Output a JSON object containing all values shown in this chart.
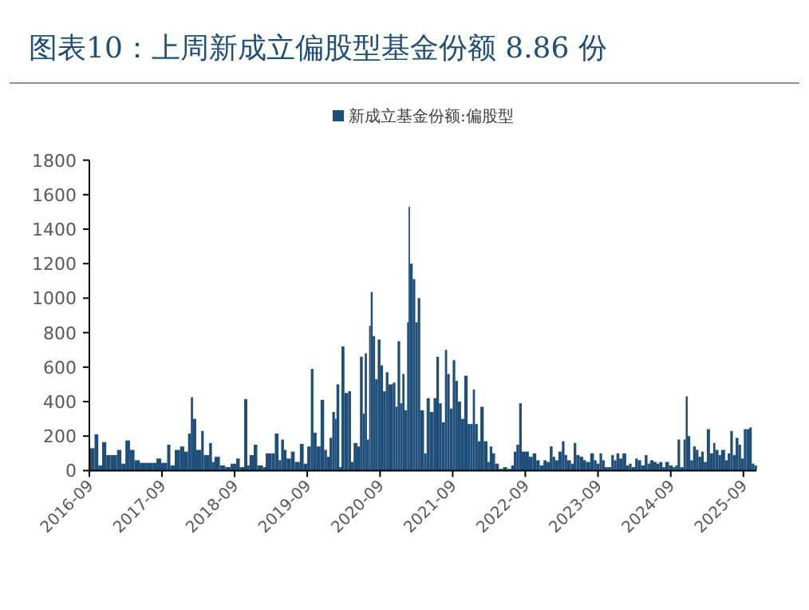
{
  "chart_data": {
    "type": "bar",
    "title": "图表10：上周新成立偏股型基金份额 8.86 份",
    "legend": "top",
    "x": [
      "2016-09-01",
      "2016-09-27",
      "2016-10-16",
      "2016-11-04",
      "2016-11-25",
      "2016-12-16",
      "2017-01-18",
      "2017-02-09",
      "2017-03-01",
      "2017-03-24",
      "2017-04-16",
      "2017-05-12",
      "2017-06-16",
      "2017-07-18",
      "2017-08-04",
      "2017-08-28",
      "2017-09-27",
      "2017-10-13",
      "2017-11-04",
      "2017-12-01",
      "2017-12-22",
      "2018-01-10",
      "2018-01-24",
      "2018-02-04",
      "2018-02-20",
      "2018-03-17",
      "2018-03-30",
      "2018-04-26",
      "2018-05-10",
      "2018-05-23",
      "2018-06-19",
      "2018-07-16",
      "2018-08-12",
      "2018-09-09",
      "2018-09-27",
      "2018-10-19",
      "2018-11-04",
      "2018-11-15",
      "2018-12-06",
      "2018-12-24",
      "2019-01-21",
      "2019-02-04",
      "2019-03-06",
      "2019-03-22",
      "2019-04-10",
      "2019-04-23",
      "2019-05-07",
      "2019-05-20",
      "2019-06-11",
      "2019-06-30",
      "2019-07-26",
      "2019-08-14",
      "2019-09-01",
      "2019-09-19",
      "2019-10-02",
      "2019-10-18",
      "2019-11-07",
      "2019-11-25",
      "2019-12-09",
      "2019-12-22",
      "2020-01-05",
      "2020-01-18",
      "2020-01-26",
      "2020-02-09",
      "2020-02-20",
      "2020-03-06",
      "2020-03-25",
      "2020-04-08",
      "2020-04-21",
      "2020-05-10",
      "2020-05-23",
      "2020-06-06",
      "2020-06-16",
      "2020-06-27",
      "2020-07-08",
      "2020-07-16",
      "2020-07-26",
      "2020-08-07",
      "2020-08-20",
      "2020-09-03",
      "2020-09-16",
      "2020-09-30",
      "2020-10-13",
      "2020-11-04",
      "2020-11-17",
      "2020-11-28",
      "2020-12-11",
      "2020-12-22",
      "2021-01-02",
      "2021-01-15",
      "2021-01-22",
      "2021-01-29",
      "2021-02-12",
      "2021-02-25",
      "2021-03-09",
      "2021-03-22",
      "2021-04-10",
      "2021-04-23",
      "2021-05-09",
      "2021-05-28",
      "2021-06-11",
      "2021-06-24",
      "2021-07-08",
      "2021-07-24",
      "2021-08-04",
      "2021-08-17",
      "2021-09-01",
      "2021-09-14",
      "2021-09-27",
      "2021-10-13",
      "2021-10-29",
      "2021-11-15",
      "2021-11-28",
      "2021-12-11",
      "2021-12-22",
      "2022-01-05",
      "2022-01-18",
      "2022-02-04",
      "2022-02-23",
      "2022-03-06",
      "2022-03-19",
      "2022-04-02",
      "2022-04-21",
      "2022-05-12",
      "2022-06-01",
      "2022-06-22",
      "2022-07-05",
      "2022-07-18",
      "2022-08-01",
      "2022-08-14",
      "2022-09-03",
      "2022-09-19",
      "2022-10-08",
      "2022-10-26",
      "2022-11-12",
      "2022-12-01",
      "2022-12-17",
      "2023-01-02",
      "2023-01-16",
      "2023-01-29",
      "2023-02-14",
      "2023-03-04",
      "2023-03-17",
      "2023-03-30",
      "2023-04-18",
      "2023-05-02",
      "2023-05-15",
      "2023-06-01",
      "2023-06-19",
      "2023-07-03",
      "2023-07-24",
      "2023-08-12",
      "2023-08-25",
      "2023-09-09",
      "2023-09-22",
      "2023-10-05",
      "2023-10-19",
      "2023-11-07",
      "2023-11-20",
      "2023-12-03",
      "2023-12-17",
      "2024-01-02",
      "2024-01-21",
      "2024-02-04",
      "2024-02-17",
      "2024-03-06",
      "2024-03-19",
      "2024-04-05",
      "2024-04-23",
      "2024-05-07",
      "2024-05-20",
      "2024-06-06",
      "2024-06-22",
      "2024-07-05",
      "2024-07-21",
      "2024-08-04",
      "2024-08-23",
      "2024-09-11",
      "2024-09-24",
      "2024-10-05",
      "2024-10-18",
      "2024-11-04",
      "2024-11-15",
      "2024-11-25",
      "2024-12-08",
      "2024-12-22",
      "2025-01-05",
      "2025-01-18",
      "2025-02-01",
      "2025-02-14",
      "2025-03-01",
      "2025-03-17",
      "2025-04-02",
      "2025-04-13",
      "2025-04-29",
      "2025-05-12",
      "2025-06-01",
      "2025-06-14",
      "2025-06-27",
      "2025-07-10",
      "2025-07-24",
      "2025-08-07",
      "2025-08-20",
      "2025-09-03",
      "2025-09-16",
      "2025-09-30",
      "2025-10-13",
      "2025-10-26"
    ],
    "series": [
      {
        "name": "新成立基金份额:偏股型",
        "color": "#1f4e79",
        "values": [
          130,
          210,
          30,
          165,
          90,
          90,
          120,
          40,
          175,
          120,
          60,
          45,
          45,
          45,
          70,
          45,
          150,
          30,
          120,
          140,
          110,
          215,
          425,
          300,
          120,
          230,
          90,
          160,
          50,
          80,
          30,
          20,
          40,
          70,
          20,
          415,
          30,
          90,
          150,
          30,
          20,
          100,
          100,
          215,
          60,
          180,
          120,
          70,
          110,
          50,
          155,
          40,
          140,
          590,
          220,
          140,
          410,
          120,
          80,
          190,
          340,
          300,
          500,
          20,
          720,
          450,
          460,
          50,
          160,
          140,
          660,
          330,
          680,
          180,
          840,
          1035,
          780,
          530,
          760,
          610,
          460,
          570,
          500,
          510,
          370,
          750,
          390,
          560,
          350,
          860,
          1530,
          1200,
          1110,
          860,
          1000,
          350,
          100,
          420,
          340,
          420,
          660,
          390,
          280,
          700,
          560,
          360,
          640,
          520,
          400,
          300,
          550,
          270,
          270,
          470,
          270,
          170,
          370,
          170,
          50,
          140,
          100,
          40,
          10,
          20,
          10,
          30,
          110,
          150,
          390,
          110,
          110,
          80,
          100,
          60,
          30,
          60,
          50,
          140,
          80,
          60,
          110,
          170,
          90,
          60,
          40,
          160,
          90,
          80,
          60,
          50,
          100,
          60,
          40,
          100,
          60,
          20,
          20,
          90,
          60,
          100,
          70,
          100,
          30,
          40,
          20,
          70,
          60,
          30,
          90,
          40,
          60,
          50,
          40,
          50,
          20,
          50,
          30,
          20,
          30,
          180,
          20,
          180,
          430,
          200,
          60,
          140,
          120,
          80,
          110,
          50,
          240,
          100,
          160,
          120,
          90,
          120,
          60,
          100,
          230,
          90,
          190,
          150,
          70,
          240,
          240,
          250,
          40,
          30
        ]
      }
    ],
    "xlim": [
      "2016-09-01",
      "2025-11-05"
    ],
    "xticks": [
      "2016-09",
      "2017-09",
      "2018-09",
      "2019-09",
      "2020-09",
      "2021-09",
      "2022-09",
      "2023-09",
      "2024-09",
      "2025-09"
    ],
    "ylim": [
      0,
      1800
    ],
    "yticks": [
      0,
      200,
      400,
      600,
      800,
      1000,
      1200,
      1400,
      1600,
      1800
    ]
  }
}
